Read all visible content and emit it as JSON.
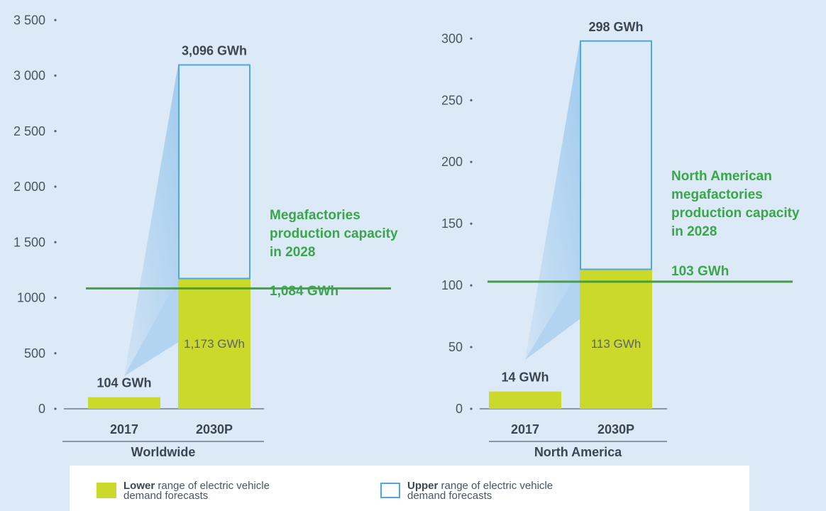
{
  "chart_data": [
    {
      "type": "bar",
      "panel_label": "Worldwide",
      "categories": [
        "2017",
        "2030P"
      ],
      "ylim": [
        0,
        3500
      ],
      "yticks": [
        0,
        500,
        1000,
        1500,
        2000,
        2500,
        3000,
        3500
      ],
      "ytick_labels": [
        "0",
        "500",
        "1000",
        "1 500",
        "2 000",
        "2 500",
        "3 000",
        "3 500"
      ],
      "lower": [
        104,
        1173
      ],
      "upper": [
        null,
        3096
      ],
      "top_labels": [
        "104 GWh",
        "3,096 GWh"
      ],
      "inner_labels": [
        "",
        "1,173 GWh"
      ],
      "capacity": {
        "value": 1084,
        "label_lines": [
          "Megafactories",
          "production capacity",
          "in 2028"
        ],
        "value_label": "1,084 GWh"
      }
    },
    {
      "type": "bar",
      "panel_label": "North America",
      "categories": [
        "2017",
        "2030P"
      ],
      "ylim": [
        0,
        320
      ],
      "yticks": [
        0,
        50,
        100,
        150,
        200,
        250,
        300
      ],
      "ytick_labels": [
        "0",
        "50",
        "100",
        "150",
        "200",
        "250",
        "300"
      ],
      "lower": [
        14,
        113
      ],
      "upper": [
        null,
        298
      ],
      "top_labels": [
        "14 GWh",
        "298 GWh"
      ],
      "inner_labels": [
        "",
        "113 GWh"
      ],
      "capacity": {
        "value": 103,
        "label_lines": [
          "North American",
          "megafactories",
          "production capacity",
          "in 2028"
        ],
        "value_label": "103 GWh"
      }
    }
  ],
  "legend": {
    "lower_bold": "Lower",
    "lower_rest": " range of electric vehicle",
    "lower_line2": "demand forecasts",
    "upper_bold": "Upper",
    "upper_rest": " range of electric vehicle",
    "upper_line2": "demand forecasts"
  },
  "colors": {
    "background": "#dce9f6",
    "lower_bar": "#cbd92a",
    "upper_outline": "#4fa8dc",
    "capacity_line": "#43a047",
    "capacity_text": "#3aa64a",
    "text": "#3c4650",
    "axis": "#5a6470",
    "cone": "#8fc2ec"
  }
}
